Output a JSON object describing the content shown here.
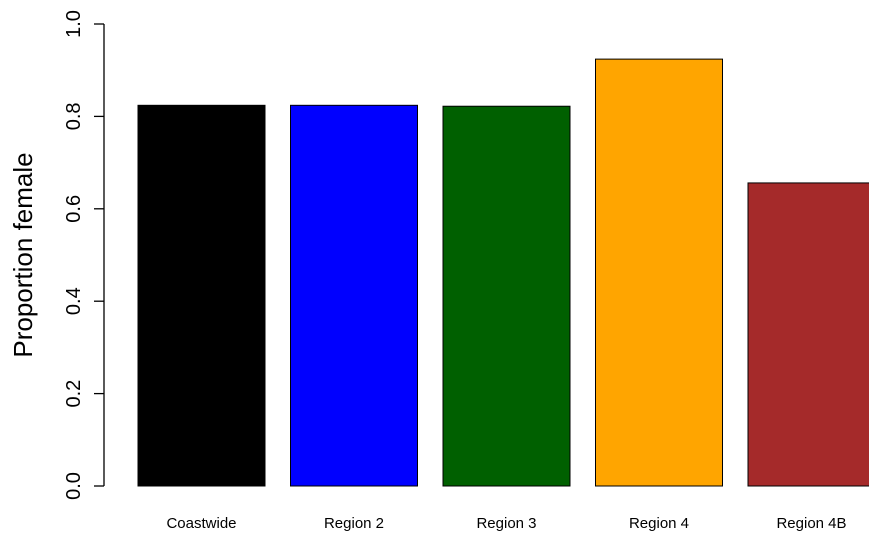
{
  "chart_data": {
    "type": "bar",
    "categories": [
      "Coastwide",
      "Region 2",
      "Region 3",
      "Region 4",
      "Region 4B"
    ],
    "values": [
      0.824,
      0.824,
      0.822,
      0.924,
      0.656
    ],
    "colors": [
      "#000000",
      "#0000ff",
      "#006000",
      "#ffa500",
      "#a52a2a"
    ],
    "title": "",
    "xlabel": "",
    "ylabel": "Proportion female",
    "ylim": [
      0,
      1
    ],
    "yticks": [
      0.0,
      0.2,
      0.4,
      0.6,
      0.8,
      1.0
    ],
    "ytick_labels": [
      "0.0",
      "0.2",
      "0.4",
      "0.6",
      "0.8",
      "1.0"
    ],
    "grid": false,
    "legend": "none"
  }
}
